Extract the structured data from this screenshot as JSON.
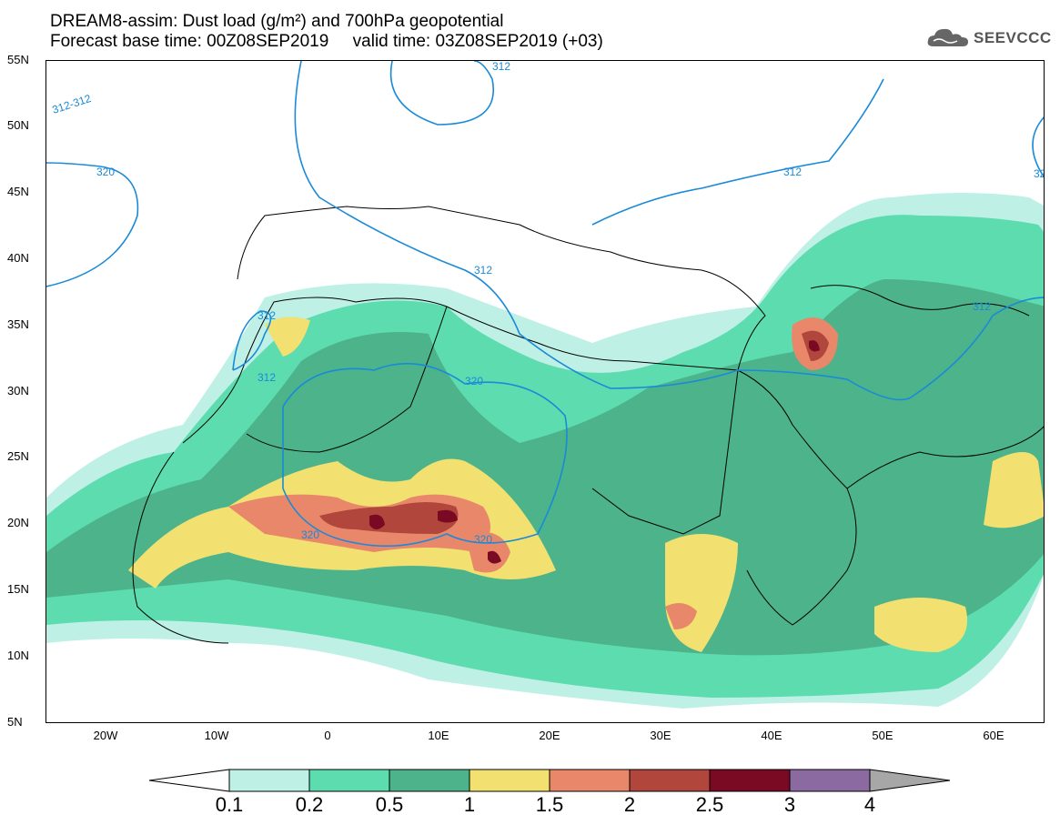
{
  "header": {
    "title_line1": "DREAM8-assim: Dust load (g/m²) and 700hPa geopotential",
    "title_line2": "Forecast base time: 00Z08SEP2019     valid time: 03Z08SEP2019 (+03)",
    "logo_text": "SEEVCCC"
  },
  "axes": {
    "lat_labels": [
      "55N",
      "50N",
      "45N",
      "40N",
      "35N",
      "30N",
      "25N",
      "20N",
      "15N",
      "10N",
      "5N"
    ],
    "lon_labels": [
      "20W",
      "10W",
      "0",
      "10E",
      "20E",
      "30E",
      "40E",
      "50E",
      "60E"
    ]
  },
  "contour_labels": [
    "312-312",
    "320",
    "312",
    "312",
    "312",
    "320",
    "320",
    "320",
    "312",
    "312",
    "312",
    "32"
  ],
  "colorbar": {
    "labels": [
      "0.1",
      "0.2",
      "0.5",
      "1",
      "1.5",
      "2",
      "2.5",
      "3",
      "4"
    ],
    "colors": [
      "#bff0e6",
      "#5ddcb0",
      "#4cb38a",
      "#f2e070",
      "#e8876a",
      "#b0463c",
      "#7a0a24",
      "#8a6aa0",
      "#a7a7a7"
    ]
  }
}
